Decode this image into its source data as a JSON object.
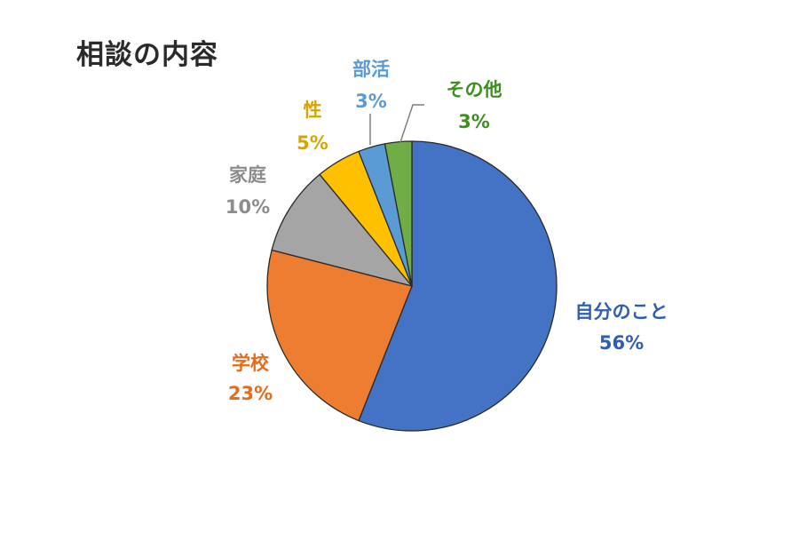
{
  "chart_data": {
    "type": "pie",
    "title": "相談の内容",
    "slices": [
      {
        "label": "自分のこと",
        "value": 56,
        "value_label": "56%",
        "color": "#4472c4",
        "label_color": "#2f5fb3"
      },
      {
        "label": "学校",
        "value": 23,
        "value_label": "23%",
        "color": "#ed7d31",
        "label_color": "#e36c1d"
      },
      {
        "label": "家庭",
        "value": 10,
        "value_label": "10%",
        "color": "#a5a5a5",
        "label_color": "#8c8c8c"
      },
      {
        "label": "性",
        "value": 5,
        "value_label": "5%",
        "color": "#ffc000",
        "label_color": "#d9a300"
      },
      {
        "label": "部活",
        "value": 3,
        "value_label": "3%",
        "color": "#5b9bd5",
        "label_color": "#5b9bd5"
      },
      {
        "label": "その他",
        "value": 3,
        "value_label": "3%",
        "color": "#70ad47",
        "label_color": "#3d8f1f"
      }
    ],
    "start": "12 o'clock",
    "direction": "clockwise",
    "legend": "none"
  }
}
